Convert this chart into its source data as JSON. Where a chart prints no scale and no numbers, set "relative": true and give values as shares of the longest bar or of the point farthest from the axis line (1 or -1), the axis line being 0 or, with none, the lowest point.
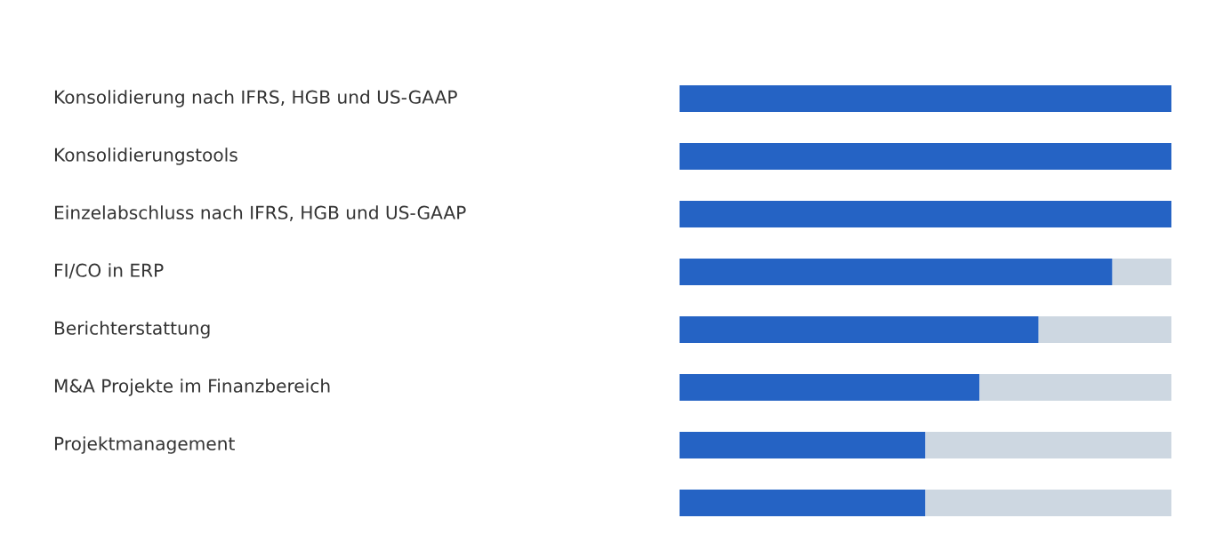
{
  "chart_data": {
    "type": "bar",
    "orientation": "horizontal",
    "stacked": true,
    "relative": true,
    "categories": [
      "Konsolidierung nach IFRS, HGB und US-GAAP",
      "Konsolidierungstools",
      "Einzelabschluss nach IFRS, HGB und US-GAAP",
      "FI/CO in ERP",
      "Berichterstattung",
      "M&A Projekte im Finanzbereich",
      "Projektmanagement",
      null
    ],
    "series": [
      {
        "color": "#2563c4",
        "values": [
          1,
          1,
          1,
          0.88,
          0.73,
          0.61,
          0.5,
          0.5
        ]
      },
      {
        "color": "#cdd7e1",
        "values": [
          0,
          0,
          0,
          0.12,
          0.27,
          0.39,
          0.5,
          0.5
        ]
      }
    ]
  }
}
